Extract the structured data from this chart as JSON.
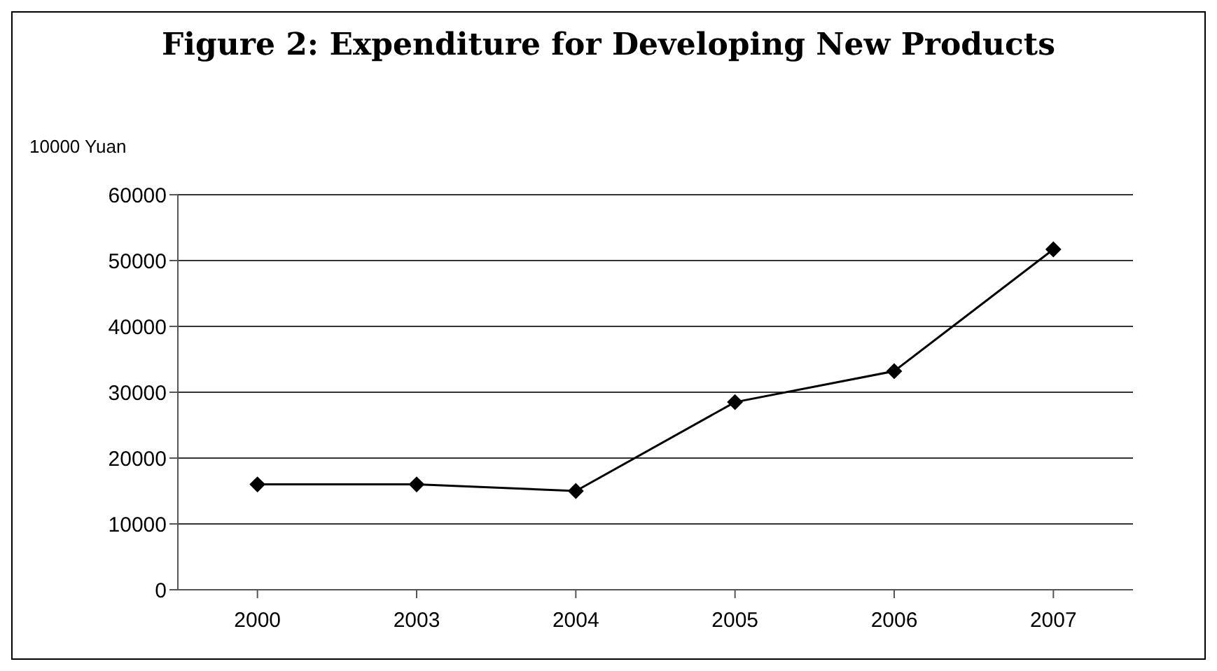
{
  "chart_data": {
    "type": "line",
    "title": "Figure 2: Expenditure for Developing New Products",
    "ylabel": "10000 Yuan",
    "categories": [
      "2000",
      "2003",
      "2004",
      "2005",
      "2006",
      "2007"
    ],
    "series": [
      {
        "color": "#000000",
        "values": [
          16000,
          16000,
          15000,
          28500,
          33200,
          51700
        ]
      }
    ],
    "ylim": [
      0,
      60000
    ],
    "yticks": [
      0,
      10000,
      20000,
      30000,
      40000,
      50000,
      60000
    ],
    "grid": "y",
    "marker": "diamond",
    "line_style": "solid"
  }
}
